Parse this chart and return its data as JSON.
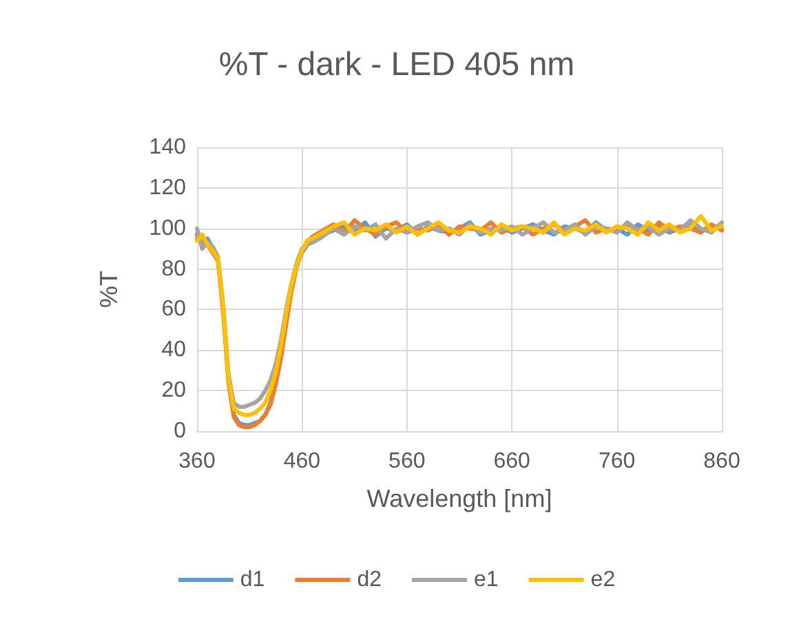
{
  "chart_data": {
    "type": "line",
    "title": "%T - dark - LED 405 nm",
    "xlabel": "Wavelength [nm]",
    "ylabel": "%T",
    "x": [
      360,
      365,
      370,
      375,
      380,
      385,
      390,
      395,
      400,
      405,
      410,
      415,
      420,
      425,
      430,
      435,
      440,
      445,
      450,
      455,
      460,
      465,
      470,
      480,
      490,
      500,
      510,
      520,
      530,
      540,
      550,
      560,
      570,
      580,
      590,
      600,
      610,
      620,
      630,
      640,
      650,
      660,
      670,
      680,
      690,
      700,
      710,
      720,
      730,
      740,
      750,
      760,
      770,
      780,
      790,
      800,
      810,
      820,
      830,
      840,
      850,
      860
    ],
    "series": [
      {
        "name": "d1",
        "color": "#5b9bd5",
        "values": [
          97,
          93,
          95,
          90,
          85,
          60,
          25,
          8,
          4,
          3,
          3,
          4,
          5,
          8,
          14,
          24,
          38,
          55,
          70,
          82,
          88,
          92,
          94,
          97,
          99,
          101,
          98,
          103,
          96,
          100,
          99,
          102,
          97,
          101,
          99,
          98,
          100,
          103,
          97,
          99,
          101,
          98,
          100,
          102,
          99,
          97,
          101,
          100,
          98,
          103,
          99,
          100,
          97,
          102,
          99,
          101,
          98,
          100,
          103,
          99,
          101,
          100
        ]
      },
      {
        "name": "d2",
        "color": "#ed7d31",
        "values": [
          95,
          96,
          92,
          88,
          84,
          58,
          24,
          7,
          3,
          2,
          2,
          3,
          5,
          8,
          13,
          23,
          36,
          53,
          69,
          81,
          89,
          93,
          96,
          99,
          102,
          98,
          104,
          100,
          97,
          101,
          103,
          98,
          100,
          99,
          102,
          97,
          101,
          100,
          99,
          103,
          98,
          100,
          101,
          97,
          100,
          102,
          99,
          101,
          104,
          98,
          100,
          99,
          102,
          100,
          97,
          103,
          99,
          101,
          100,
          98,
          102,
          99
        ]
      },
      {
        "name": "e1",
        "color": "#a5a5a5",
        "values": [
          100,
          90,
          93,
          91,
          86,
          62,
          28,
          14,
          12,
          12,
          13,
          14,
          16,
          20,
          25,
          33,
          45,
          60,
          73,
          83,
          90,
          92,
          93,
          96,
          100,
          97,
          101,
          99,
          102,
          95,
          100,
          98,
          101,
          103,
          99,
          100,
          97,
          102,
          98,
          100,
          99,
          101,
          97,
          100,
          103,
          98,
          99,
          102,
          97,
          101,
          100,
          98,
          103,
          99,
          101,
          97,
          100,
          99,
          104,
          100,
          98,
          103
        ]
      },
      {
        "name": "e2",
        "color": "#ffc000",
        "values": [
          94,
          97,
          92,
          89,
          85,
          61,
          26,
          11,
          9,
          8,
          8,
          9,
          11,
          14,
          20,
          29,
          42,
          58,
          72,
          82,
          89,
          94,
          95,
          98,
          101,
          103,
          97,
          100,
          99,
          102,
          98,
          101,
          97,
          100,
          103,
          99,
          98,
          101,
          100,
          97,
          102,
          99,
          101,
          100,
          98,
          103,
          97,
          100,
          99,
          102,
          98,
          101,
          100,
          97,
          103,
          99,
          102,
          98,
          100,
          106,
          99,
          101
        ]
      }
    ],
    "xlim": [
      360,
      860
    ],
    "xticks": [
      360,
      460,
      560,
      660,
      760,
      860
    ],
    "ylim": [
      0,
      140
    ],
    "yticks": [
      0,
      20,
      40,
      60,
      80,
      100,
      120,
      140
    ],
    "grid": true,
    "legend": "bottom",
    "line_style": "solid",
    "marker": "none"
  }
}
